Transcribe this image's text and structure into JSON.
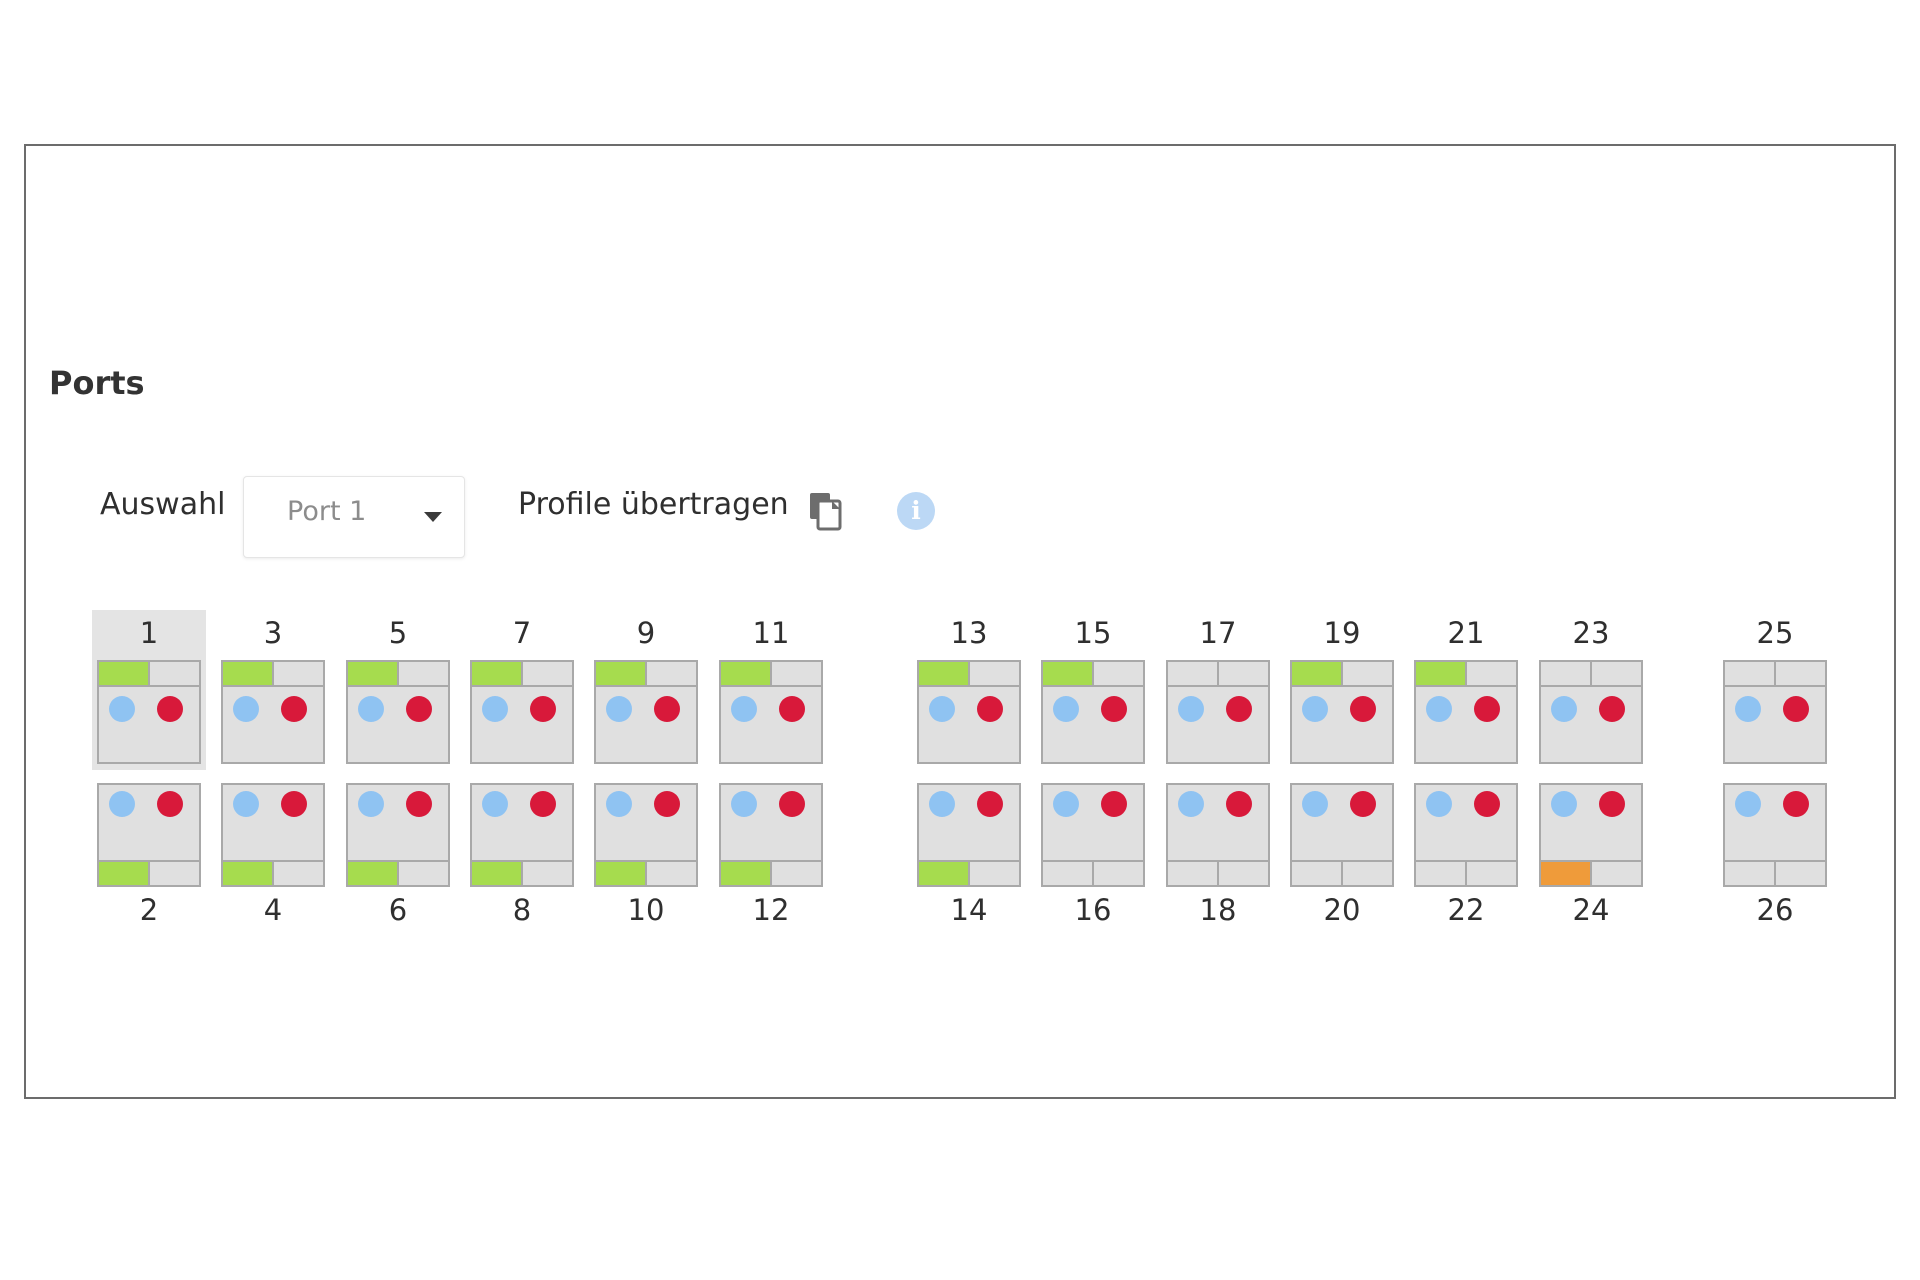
{
  "section_title": "Ports",
  "toolbar": {
    "select_label": "Auswahl",
    "select_value": "Port 1",
    "transfer_label": "Profile übertragen",
    "copy_icon": "copy-icon",
    "info_icon": "info-icon",
    "info_glyph": "i"
  },
  "colors": {
    "link_green": "#a6dc4e",
    "link_orange": "#ef9b3a",
    "dot_blue": "#8fc3f2",
    "dot_red": "#d8193a",
    "port_bg": "#e0e0e0",
    "port_border": "#a9a9a9"
  },
  "selected_port": "1",
  "ports": [
    {
      "number": "1",
      "row": "top",
      "group": 0,
      "link": "green"
    },
    {
      "number": "3",
      "row": "top",
      "group": 0,
      "link": "green"
    },
    {
      "number": "5",
      "row": "top",
      "group": 0,
      "link": "green"
    },
    {
      "number": "7",
      "row": "top",
      "group": 0,
      "link": "green"
    },
    {
      "number": "9",
      "row": "top",
      "group": 0,
      "link": "green"
    },
    {
      "number": "11",
      "row": "top",
      "group": 0,
      "link": "green"
    },
    {
      "number": "13",
      "row": "top",
      "group": 1,
      "link": "green"
    },
    {
      "number": "15",
      "row": "top",
      "group": 1,
      "link": "green"
    },
    {
      "number": "17",
      "row": "top",
      "group": 1,
      "link": "none"
    },
    {
      "number": "19",
      "row": "top",
      "group": 1,
      "link": "green"
    },
    {
      "number": "21",
      "row": "top",
      "group": 1,
      "link": "green"
    },
    {
      "number": "23",
      "row": "top",
      "group": 1,
      "link": "none"
    },
    {
      "number": "25",
      "row": "top",
      "group": 2,
      "link": "none"
    },
    {
      "number": "2",
      "row": "bottom",
      "group": 0,
      "link": "green"
    },
    {
      "number": "4",
      "row": "bottom",
      "group": 0,
      "link": "green"
    },
    {
      "number": "6",
      "row": "bottom",
      "group": 0,
      "link": "green"
    },
    {
      "number": "8",
      "row": "bottom",
      "group": 0,
      "link": "green"
    },
    {
      "number": "10",
      "row": "bottom",
      "group": 0,
      "link": "green"
    },
    {
      "number": "12",
      "row": "bottom",
      "group": 0,
      "link": "green"
    },
    {
      "number": "14",
      "row": "bottom",
      "group": 1,
      "link": "green"
    },
    {
      "number": "16",
      "row": "bottom",
      "group": 1,
      "link": "none"
    },
    {
      "number": "18",
      "row": "bottom",
      "group": 1,
      "link": "none"
    },
    {
      "number": "20",
      "row": "bottom",
      "group": 1,
      "link": "none"
    },
    {
      "number": "22",
      "row": "bottom",
      "group": 1,
      "link": "none"
    },
    {
      "number": "24",
      "row": "bottom",
      "group": 1,
      "link": "orange"
    },
    {
      "number": "26",
      "row": "bottom",
      "group": 2,
      "link": "none"
    }
  ]
}
